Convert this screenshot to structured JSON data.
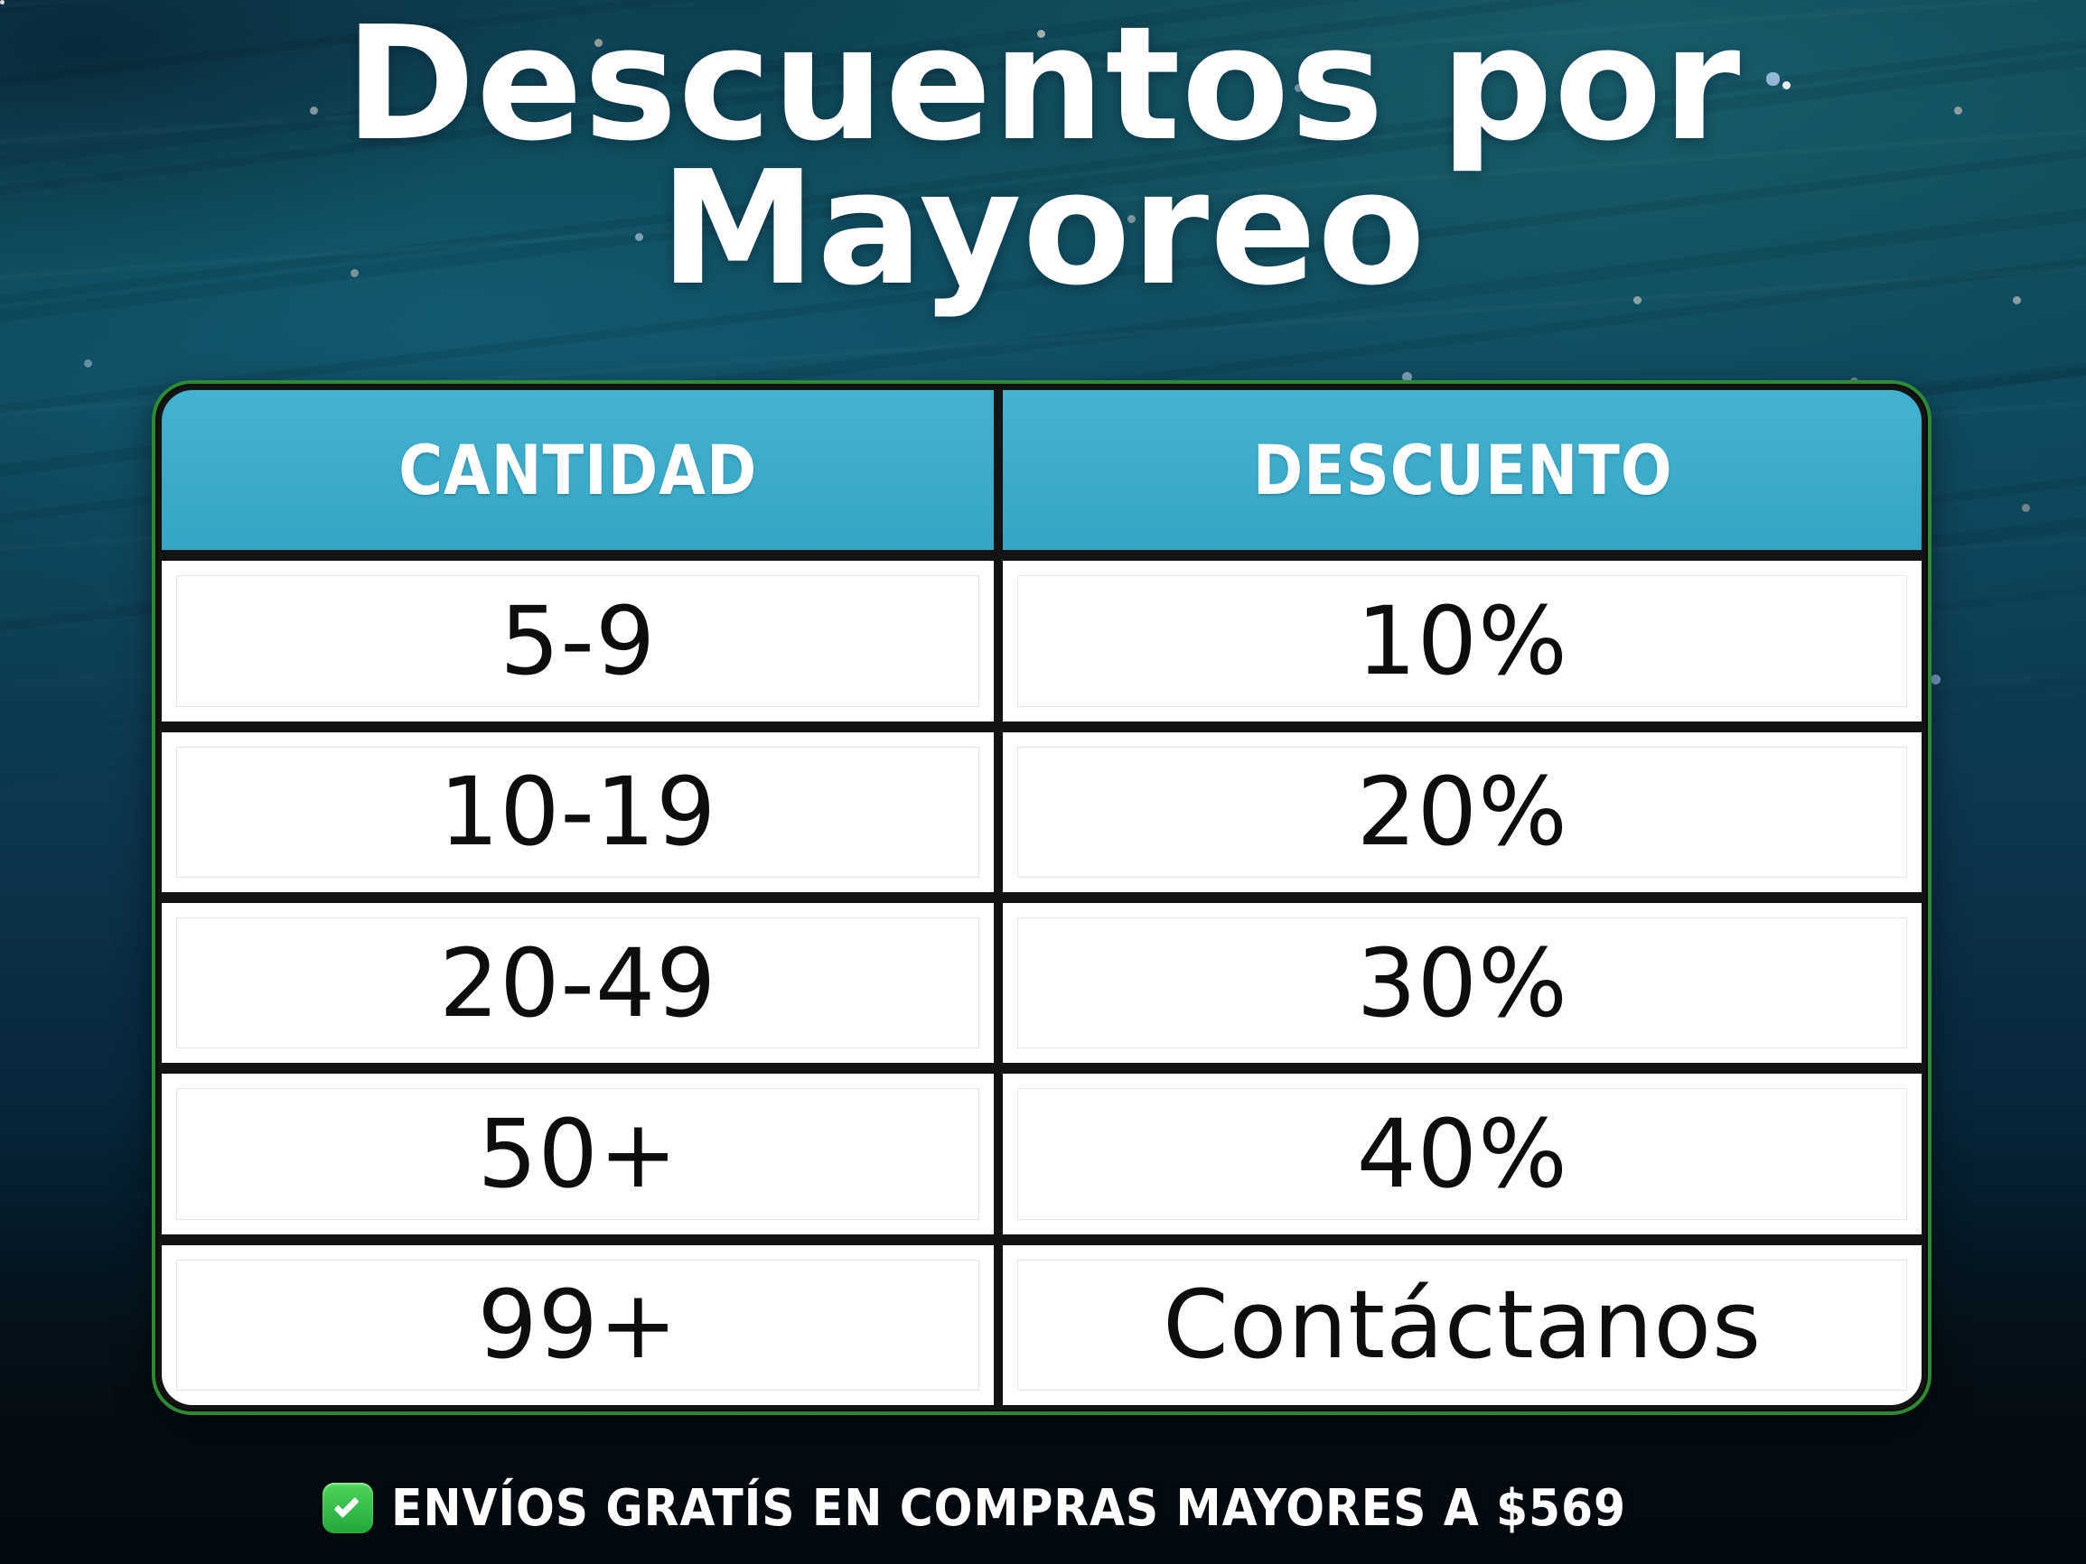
{
  "title": {
    "line1": "Descuentos por",
    "line2": "Mayoreo"
  },
  "chart_data": {
    "type": "table",
    "title": "Descuentos por Mayoreo",
    "columns": [
      "CANTIDAD",
      "DESCUENTO"
    ],
    "rows": [
      [
        "5-9",
        "10%"
      ],
      [
        "10-19",
        "20%"
      ],
      [
        "20-49",
        "30%"
      ],
      [
        "50+",
        "40%"
      ],
      [
        "99+",
        "Contáctanos"
      ]
    ],
    "note": "ENVÍOS GRATÍS EN COMPRAS MAYORES A $569"
  },
  "footer": {
    "text": "ENVÍOS GRATÍS EN COMPRAS MAYORES A $569"
  },
  "icons": {
    "check": "check-icon"
  },
  "colors": {
    "header_teal": "#38A9C9",
    "row_white": "#FFFFFF",
    "divider_black": "#131313",
    "border_green": "#2B8A33",
    "check_green": "#2EBC4A",
    "title_white": "#FFFFFF",
    "cell_text_black": "#0D0D0D",
    "ocean_dark": "#06121A"
  }
}
